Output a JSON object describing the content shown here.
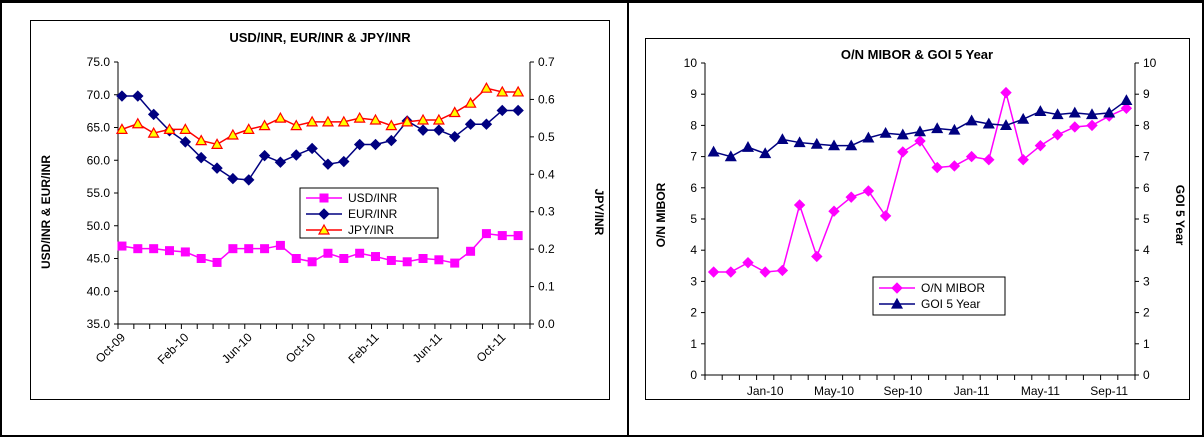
{
  "charts": [
    {
      "type": "line",
      "title": "USD/INR, EUR/INR & JPY/INR",
      "ylabel_left": "USD/INR & EUR/INR",
      "ylabel_right": "JPY/INR",
      "x_tick_labels": [
        "Oct-09",
        "Feb-10",
        "Jun-10",
        "Oct-10",
        "Feb-11",
        "Jun-11",
        "Oct-11"
      ],
      "y_left_ticks": [
        "35.0",
        "40.0",
        "45.0",
        "50.0",
        "55.0",
        "60.0",
        "65.0",
        "70.0",
        "75.0"
      ],
      "y_right_ticks": [
        "0.0",
        "0.1",
        "0.2",
        "0.3",
        "0.4",
        "0.5",
        "0.6",
        "0.7"
      ],
      "legend": [
        "USD/INR",
        "EUR/INR",
        "JPY/INR"
      ]
    },
    {
      "type": "line",
      "title": "O/N MIBOR & GOI 5 Year",
      "ylabel_left": "O/N MIBOR",
      "ylabel_right": "GOI 5 Year",
      "x_tick_labels": [
        "Jan-10",
        "May-10",
        "Sep-10",
        "Jan-11",
        "May-11",
        "Sep-11"
      ],
      "y_left_ticks": [
        "0",
        "1",
        "2",
        "3",
        "4",
        "5",
        "6",
        "7",
        "8",
        "9",
        "10"
      ],
      "y_right_ticks": [
        "0",
        "1",
        "2",
        "3",
        "4",
        "5",
        "6",
        "7",
        "8",
        "9",
        "10"
      ],
      "legend": [
        "O/N MIBOR",
        "GOI 5 Year"
      ]
    }
  ],
  "chart_data": [
    {
      "type": "line",
      "title": "USD/INR, EUR/INR & JPY/INR",
      "x": [
        "Oct-09",
        "Nov-09",
        "Dec-09",
        "Jan-10",
        "Feb-10",
        "Mar-10",
        "Apr-10",
        "May-10",
        "Jun-10",
        "Jul-10",
        "Aug-10",
        "Sep-10",
        "Oct-10",
        "Nov-10",
        "Dec-10",
        "Jan-11",
        "Feb-11",
        "Mar-11",
        "Apr-11",
        "May-11",
        "Jun-11",
        "Jul-11",
        "Aug-11",
        "Sep-11",
        "Oct-11",
        "Nov-11"
      ],
      "ylim_left": [
        35,
        75
      ],
      "ylim_right": [
        0,
        0.7
      ],
      "series": [
        {
          "name": "USD/INR",
          "axis": "left",
          "color": "#ff00ff",
          "marker": "square",
          "values": [
            46.9,
            46.5,
            46.5,
            46.2,
            46.0,
            45.0,
            44.4,
            46.5,
            46.5,
            46.5,
            47.0,
            45.0,
            44.5,
            45.8,
            45.0,
            45.8,
            45.3,
            44.7,
            44.5,
            45.0,
            44.8,
            44.3,
            46.1,
            48.8,
            48.5,
            48.5
          ]
        },
        {
          "name": "EUR/INR",
          "axis": "left",
          "color": "#000080",
          "marker": "diamond",
          "values": [
            69.8,
            69.8,
            67.0,
            64.5,
            62.8,
            60.4,
            58.8,
            57.2,
            57.0,
            60.7,
            59.7,
            60.8,
            61.8,
            59.4,
            59.8,
            62.4,
            62.4,
            63.0,
            66.0,
            64.6,
            64.6,
            63.6,
            65.5,
            65.5,
            67.6,
            67.6
          ]
        },
        {
          "name": "JPY/INR",
          "axis": "right",
          "color": "#ff0000",
          "marker": "triangle",
          "values": [
            0.52,
            0.535,
            0.51,
            0.52,
            0.52,
            0.49,
            0.48,
            0.505,
            0.52,
            0.53,
            0.55,
            0.53,
            0.54,
            0.54,
            0.54,
            0.55,
            0.545,
            0.53,
            0.54,
            0.545,
            0.545,
            0.565,
            0.59,
            0.63,
            0.62,
            0.62
          ]
        }
      ]
    },
    {
      "type": "line",
      "title": "O/N MIBOR & GOI 5 Year",
      "x": [
        "Oct-09",
        "Nov-09",
        "Dec-09",
        "Jan-10",
        "Feb-10",
        "Mar-10",
        "Apr-10",
        "May-10",
        "Jun-10",
        "Jul-10",
        "Aug-10",
        "Sep-10",
        "Oct-10",
        "Nov-10",
        "Dec-10",
        "Jan-11",
        "Feb-11",
        "Mar-11",
        "Apr-11",
        "May-11",
        "Jun-11",
        "Jul-11",
        "Aug-11",
        "Sep-11",
        "Oct-11"
      ],
      "ylim_left": [
        0,
        10
      ],
      "ylim_right": [
        0,
        10
      ],
      "series": [
        {
          "name": "O/N MIBOR",
          "axis": "left",
          "color": "#ff00ff",
          "marker": "diamond",
          "values": [
            3.3,
            3.3,
            3.6,
            3.3,
            3.35,
            5.45,
            3.8,
            5.25,
            5.7,
            5.9,
            5.1,
            7.15,
            7.5,
            6.65,
            6.7,
            7.0,
            6.9,
            9.05,
            6.9,
            7.35,
            7.7,
            7.95,
            8.0,
            8.3,
            8.55
          ]
        },
        {
          "name": "GOI 5 Year",
          "axis": "right",
          "color": "#000080",
          "marker": "triangle",
          "values": [
            7.15,
            7.0,
            7.3,
            7.1,
            7.55,
            7.45,
            7.4,
            7.35,
            7.35,
            7.6,
            7.75,
            7.7,
            7.8,
            7.9,
            7.85,
            8.15,
            8.05,
            8.0,
            8.2,
            8.45,
            8.35,
            8.4,
            8.35,
            8.4,
            8.8
          ]
        }
      ]
    }
  ]
}
